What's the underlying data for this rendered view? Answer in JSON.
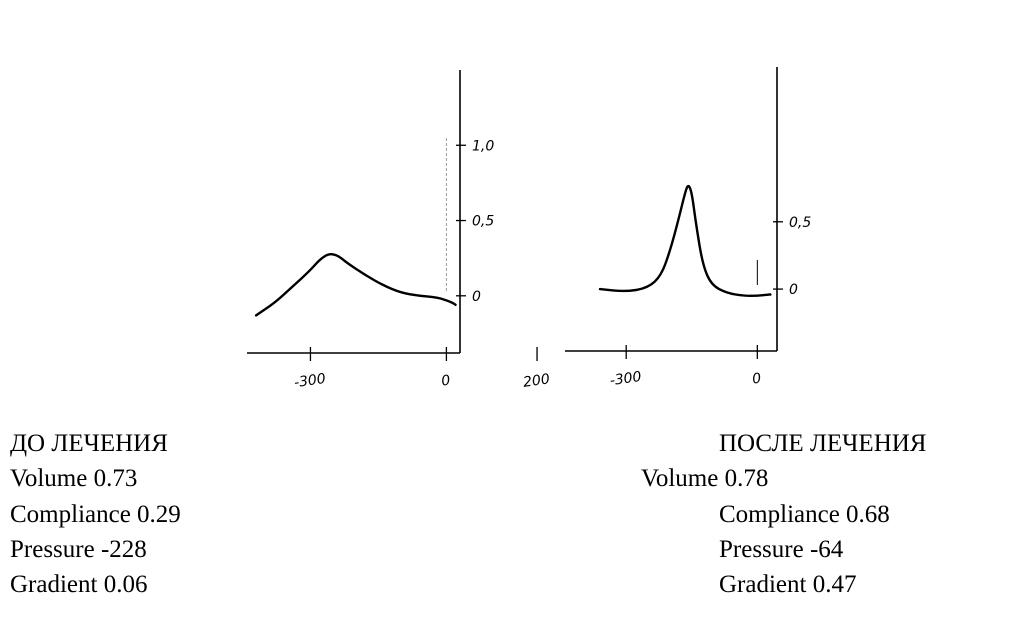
{
  "chart_data": [
    {
      "type": "line",
      "title": "",
      "xlabel": "",
      "ylabel": "",
      "xlim": [
        -440,
        30
      ],
      "ylim": [
        -0.38,
        1.5
      ],
      "x_ticks": [
        -300,
        0,
        200
      ],
      "x_tick_labels": [
        "-300",
        "0",
        "200"
      ],
      "y_ticks": [
        1.0,
        0.5,
        0
      ],
      "y_tick_labels": [
        "1,0",
        "0,5",
        "0"
      ],
      "reference_line_x": 0,
      "series": [
        {
          "points": [
            [
              -420,
              -0.13
            ],
            [
              -380,
              -0.05
            ],
            [
              -340,
              0.06
            ],
            [
              -300,
              0.17
            ],
            [
              -280,
              0.24
            ],
            [
              -260,
              0.28
            ],
            [
              -240,
              0.27
            ],
            [
              -220,
              0.22
            ],
            [
              -180,
              0.14
            ],
            [
              -140,
              0.07
            ],
            [
              -100,
              0.02
            ],
            [
              -60,
              0.0
            ],
            [
              -20,
              -0.01
            ],
            [
              10,
              -0.04
            ],
            [
              20,
              -0.06
            ]
          ]
        }
      ]
    },
    {
      "type": "line",
      "title": "",
      "xlabel": "",
      "ylabel": "",
      "xlim": [
        -440,
        45
      ],
      "ylim": [
        -0.46,
        1.65
      ],
      "x_ticks": [
        -300,
        0
      ],
      "x_tick_labels": [
        "-300",
        "0"
      ],
      "y_ticks": [
        0.5,
        0
      ],
      "y_tick_labels": [
        "0,5",
        "0"
      ],
      "reference_line_x": 0,
      "series": [
        {
          "points": [
            [
              -360,
              0.0
            ],
            [
              -300,
              -0.02
            ],
            [
              -250,
              0.01
            ],
            [
              -220,
              0.1
            ],
            [
              -200,
              0.28
            ],
            [
              -180,
              0.52
            ],
            [
              -165,
              0.72
            ],
            [
              -158,
              0.78
            ],
            [
              -150,
              0.72
            ],
            [
              -140,
              0.48
            ],
            [
              -125,
              0.18
            ],
            [
              -105,
              0.03
            ],
            [
              -70,
              -0.03
            ],
            [
              -30,
              -0.05
            ],
            [
              0,
              -0.05
            ],
            [
              30,
              -0.04
            ]
          ]
        }
      ]
    }
  ],
  "captions": {
    "before": {
      "title": "ДО ЛЕЧЕНИЯ",
      "volume": "Volume 0.73",
      "compliance": "Compliance 0.29",
      "pressure": "Pressure -228",
      "gradient": "Gradient 0.06"
    },
    "after": {
      "title": "ПОСЛЕ ЛЕЧЕНИЯ",
      "volume": "Volume 0.78",
      "compliance": "Compliance 0.68",
      "pressure": "Pressure -64",
      "gradient": "Gradient 0.47"
    }
  }
}
